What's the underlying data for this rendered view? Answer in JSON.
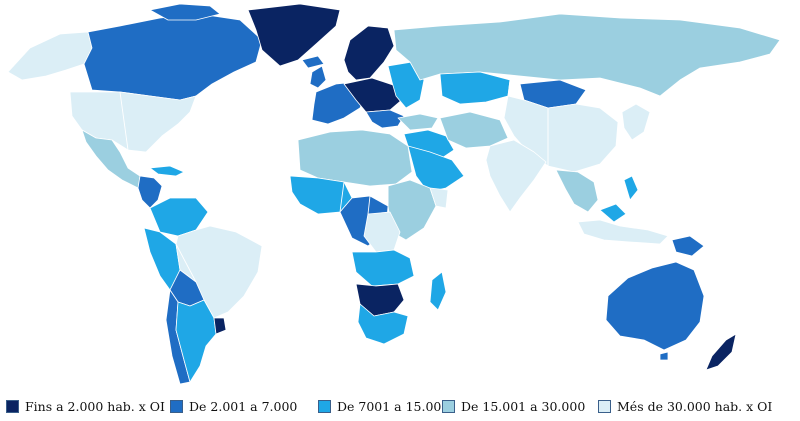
{
  "colors": {
    "c1": "#0a2462",
    "c2": "#1f6dc4",
    "c3": "#1fa7e6",
    "c4": "#9bcfe0",
    "c5": "#dbeef6",
    "ocean": "#ffffff"
  },
  "legend": {
    "items": [
      {
        "key": "c1",
        "label": "Fins a 2.000 hab. x OI"
      },
      {
        "key": "c2",
        "label": "De 2.001 a 7.000"
      },
      {
        "key": "c3",
        "label": "De 7001 a 15.000"
      },
      {
        "key": "c4",
        "label": "De 15.001 a 30.000"
      },
      {
        "key": "c5",
        "label": "Més de 30.000 hab. x OI"
      }
    ]
  }
}
